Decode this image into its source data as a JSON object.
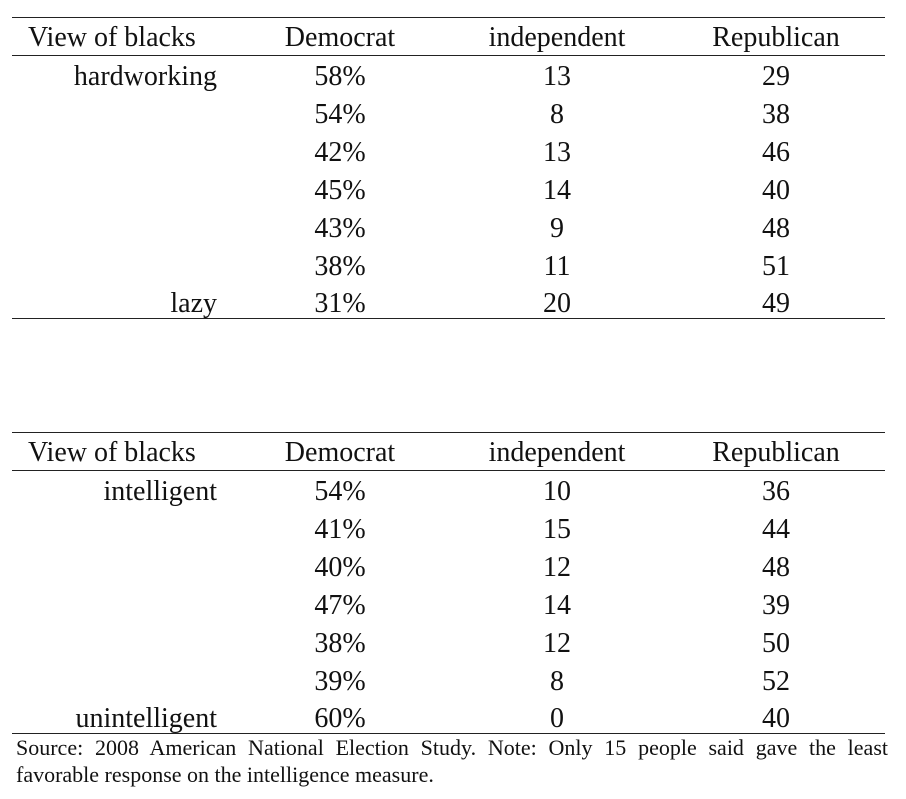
{
  "tables": [
    {
      "header": [
        "View of blacks",
        "Democrat",
        "independent",
        "Republican"
      ],
      "rows": [
        [
          "hardworking",
          "58%",
          "13",
          "29"
        ],
        [
          null,
          "54%",
          "8",
          "38"
        ],
        [
          null,
          "42%",
          "13",
          "46"
        ],
        [
          null,
          "45%",
          "14",
          "40"
        ],
        [
          null,
          "43%",
          "9",
          "48"
        ],
        [
          null,
          "38%",
          "11",
          "51"
        ],
        [
          "lazy",
          "31%",
          "20",
          "49"
        ]
      ]
    },
    {
      "header": [
        "View of blacks",
        "Democrat",
        "independent",
        "Republican"
      ],
      "rows": [
        [
          "intelligent",
          "54%",
          "10",
          "36"
        ],
        [
          null,
          "41%",
          "15",
          "44"
        ],
        [
          null,
          "40%",
          "12",
          "48"
        ],
        [
          null,
          "47%",
          "14",
          "39"
        ],
        [
          null,
          "38%",
          "12",
          "50"
        ],
        [
          null,
          "39%",
          "8",
          "52"
        ],
        [
          "unintelligent",
          "60%",
          "0",
          "40"
        ]
      ]
    }
  ],
  "note": "Source: 2008 American National Election Study. Note: Only 15 people said gave the least favorable response on the intelligence measure."
}
